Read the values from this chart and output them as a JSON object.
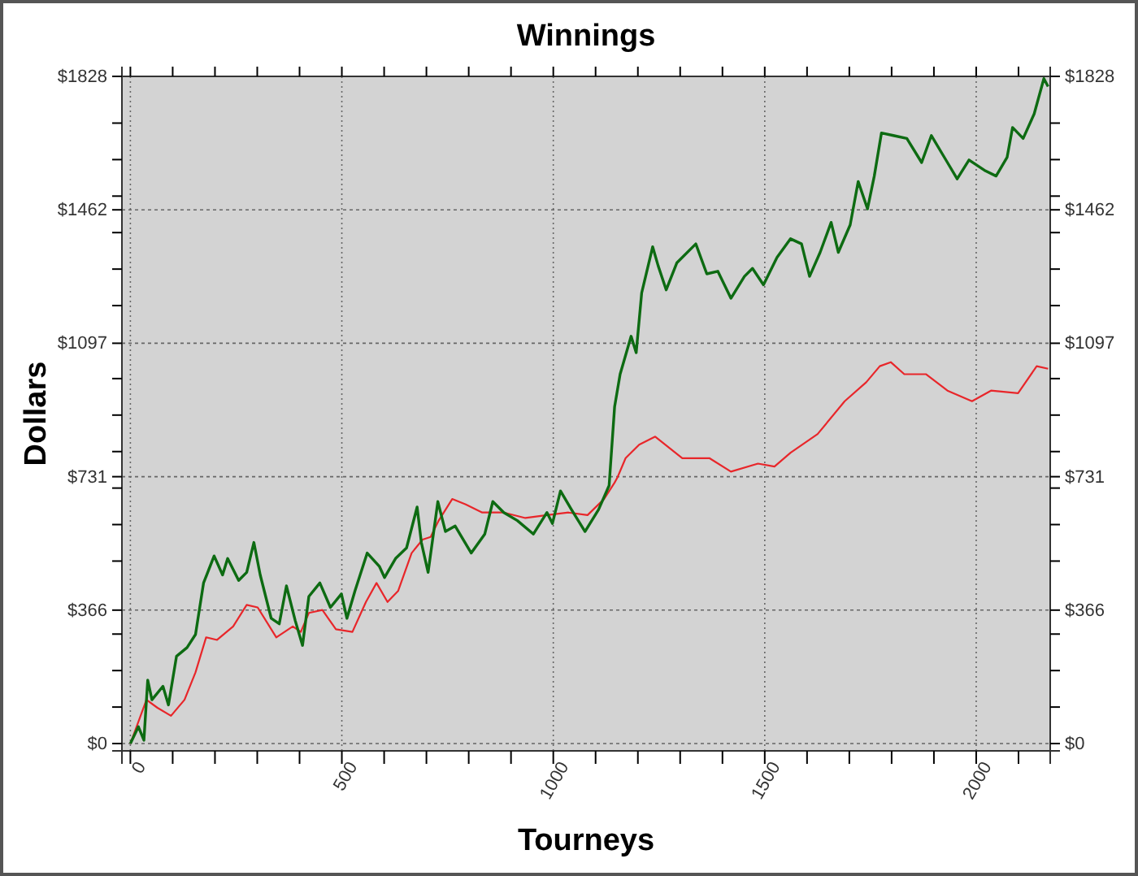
{
  "chart_data": {
    "type": "line",
    "title": "Winnings",
    "xlabel": "Tourneys",
    "ylabel": "Dollars",
    "xlim": [
      -20,
      2175
    ],
    "ylim": [
      -20,
      1828
    ],
    "y2lim": [
      -20,
      1828
    ],
    "xticks": [
      0,
      {
        "value": 100,
        "label": null
      },
      {
        "value": 200,
        "label": null
      },
      {
        "value": 300,
        "label": null
      },
      {
        "value": 400,
        "label": null
      },
      500,
      {
        "value": 600,
        "label": null
      },
      {
        "value": 700,
        "label": null
      },
      {
        "value": 800,
        "label": null
      },
      {
        "value": 900,
        "label": null
      },
      1000,
      {
        "value": 1100,
        "label": null
      },
      {
        "value": 1200,
        "label": null
      },
      {
        "value": 1300,
        "label": null
      },
      {
        "value": 1400,
        "label": null
      },
      1500,
      {
        "value": 1600,
        "label": null
      },
      {
        "value": 1700,
        "label": null
      },
      {
        "value": 1800,
        "label": null
      },
      {
        "value": 1900,
        "label": null
      },
      2000,
      {
        "value": 2100,
        "label": null
      }
    ],
    "yticks": [
      {
        "value": 0,
        "label": "$0"
      },
      {
        "value": 100,
        "label": null
      },
      {
        "value": 200,
        "label": null
      },
      {
        "value": 300,
        "label": null
      },
      {
        "value": 365.6,
        "label": "$366"
      },
      {
        "value": 500,
        "label": null
      },
      {
        "value": 600,
        "label": null
      },
      {
        "value": 700,
        "label": null
      },
      {
        "value": 731.2,
        "label": "$731"
      },
      {
        "value": 800,
        "label": null
      },
      {
        "value": 900,
        "label": null
      },
      {
        "value": 1000,
        "label": null
      },
      {
        "value": 1096.8,
        "label": "$1097"
      },
      {
        "value": 1200,
        "label": null
      },
      {
        "value": 1300,
        "label": null
      },
      {
        "value": 1400,
        "label": null
      },
      {
        "value": 1462.4,
        "label": "$1462"
      },
      {
        "value": 1500,
        "label": null
      },
      {
        "value": 1600,
        "label": null
      },
      {
        "value": 1700,
        "label": null
      },
      {
        "value": 1828,
        "label": "$1828"
      }
    ],
    "y2ticks": [
      {
        "value": 0,
        "label": "$0"
      },
      {
        "value": 100,
        "label": null
      },
      {
        "value": 200,
        "label": null
      },
      {
        "value": 300,
        "label": null
      },
      {
        "value": 365.6,
        "label": "$366"
      },
      {
        "value": 500,
        "label": null
      },
      {
        "value": 600,
        "label": null
      },
      {
        "value": 700,
        "label": null
      },
      {
        "value": 731.2,
        "label": "$731"
      },
      {
        "value": 800,
        "label": null
      },
      {
        "value": 900,
        "label": null
      },
      {
        "value": 1000,
        "label": null
      },
      {
        "value": 1096.8,
        "label": "$1097"
      },
      {
        "value": 1200,
        "label": null
      },
      {
        "value": 1300,
        "label": null
      },
      {
        "value": 1400,
        "label": null
      },
      {
        "value": 1462.4,
        "label": "$1462"
      },
      {
        "value": 1500,
        "label": null
      },
      {
        "value": 1600,
        "label": null
      },
      {
        "value": 1700,
        "label": null
      },
      {
        "value": 1828,
        "label": "$1828"
      }
    ],
    "grid": true,
    "marker": "none",
    "line_style": "solid",
    "series": [
      {
        "color": "#e8262a",
        "x": [
          0,
          38,
          64,
          96,
          128,
          154,
          179,
          205,
          243,
          275,
          301,
          345,
          384,
          403,
          422,
          454,
          486,
          525,
          557,
          582,
          608,
          633,
          665,
          691,
          710,
          729,
          761,
          793,
          832,
          883,
          934,
          985,
          1036,
          1081,
          1120,
          1145,
          1152,
          1171,
          1203,
          1241,
          1305,
          1369,
          1420,
          1484,
          1523,
          1561,
          1625,
          1689,
          1740,
          1772,
          1798,
          1830,
          1881,
          1932,
          1990,
          2035,
          2099,
          2143,
          2170
        ],
        "values": [
          0,
          120,
          98,
          76,
          120,
          195,
          291,
          284,
          321,
          380,
          373,
          291,
          321,
          306,
          358,
          366,
          313,
          306,
          388,
          440,
          388,
          418,
          522,
          559,
          566,
          611,
          670,
          655,
          633,
          633,
          618,
          626,
          633,
          626,
          670,
          715,
          730,
          782,
          819,
          841,
          782,
          782,
          745,
          767,
          759,
          797,
          848,
          938,
          990,
          1034,
          1045,
          1012,
          1012,
          967,
          938,
          967,
          960,
          1034,
          1027
        ]
      },
      {
        "color": "#0d6b12",
        "x": [
          0,
          19,
          32,
          41,
          51,
          77,
          90,
          109,
          134,
          154,
          173,
          198,
          218,
          230,
          256,
          275,
          292,
          307,
          333,
          352,
          369,
          390,
          407,
          422,
          448,
          473,
          499,
          512,
          531,
          560,
          589,
          601,
          627,
          653,
          678,
          688,
          704,
          727,
          745,
          768,
          806,
          838,
          857,
          883,
          915,
          953,
          985,
          998,
          1017,
          1043,
          1075,
          1107,
          1132,
          1145,
          1158,
          1184,
          1196,
          1209,
          1235,
          1248,
          1267,
          1292,
          1337,
          1363,
          1389,
          1420,
          1452,
          1471,
          1497,
          1529,
          1561,
          1587,
          1606,
          1631,
          1657,
          1674,
          1702,
          1721,
          1743,
          1759,
          1776,
          1804,
          1836,
          1871,
          1894,
          1932,
          1955,
          1983,
          2022,
          2047,
          2073,
          2086,
          2111,
          2137,
          2160,
          2170
        ],
        "values": [
          0,
          46,
          9,
          174,
          120,
          157,
          106,
          239,
          263,
          299,
          440,
          514,
          462,
          507,
          447,
          469,
          551,
          462,
          343,
          328,
          432,
          336,
          269,
          403,
          440,
          373,
          410,
          343,
          418,
          522,
          485,
          455,
          507,
          536,
          648,
          551,
          469,
          663,
          581,
          596,
          522,
          574,
          663,
          633,
          611,
          574,
          633,
          603,
          692,
          641,
          581,
          641,
          707,
          923,
          1012,
          1116,
          1071,
          1235,
          1361,
          1309,
          1243,
          1317,
          1369,
          1287,
          1294,
          1220,
          1280,
          1302,
          1257,
          1332,
          1383,
          1369,
          1280,
          1346,
          1428,
          1346,
          1421,
          1540,
          1465,
          1555,
          1673,
          1666,
          1658,
          1592,
          1666,
          1592,
          1547,
          1599,
          1569,
          1555,
          1606,
          1688,
          1658,
          1725,
          1822,
          1800
        ]
      }
    ]
  }
}
